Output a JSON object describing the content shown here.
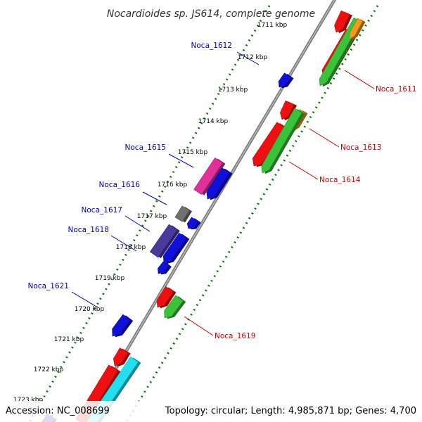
{
  "title": "Nocardioides sp. JS614, complete genome",
  "footer": {
    "accession": "Accession: NC_008699",
    "summary": "Topology: circular; Length: 4,985,871 bp; Genes: 4,700"
  },
  "colors": {
    "backbone": "#707070",
    "tick_dots": "#0a7a0a",
    "forward_label": "#cc0000",
    "reverse_label": "#0000bb"
  },
  "scale_labels": [
    "1711 kbp",
    "1712 kbp",
    "1713 kbp",
    "1714 kbp",
    "1715 kbp",
    "1716 kbp",
    "1717 kbp",
    "1718 kbp",
    "1719 kbp",
    "1720 kbp",
    "1721 kbp",
    "1722 kbp",
    "1723 kbp"
  ],
  "gene_labels_reverse": [
    "Noca_1612",
    "Noca_1615",
    "Noca_1616",
    "Noca_1617",
    "Noca_1618",
    "Noca_1621"
  ],
  "gene_labels_forward": [
    "Noca_1611",
    "Noca_1613",
    "Noca_1614",
    "Noca_1619"
  ]
}
